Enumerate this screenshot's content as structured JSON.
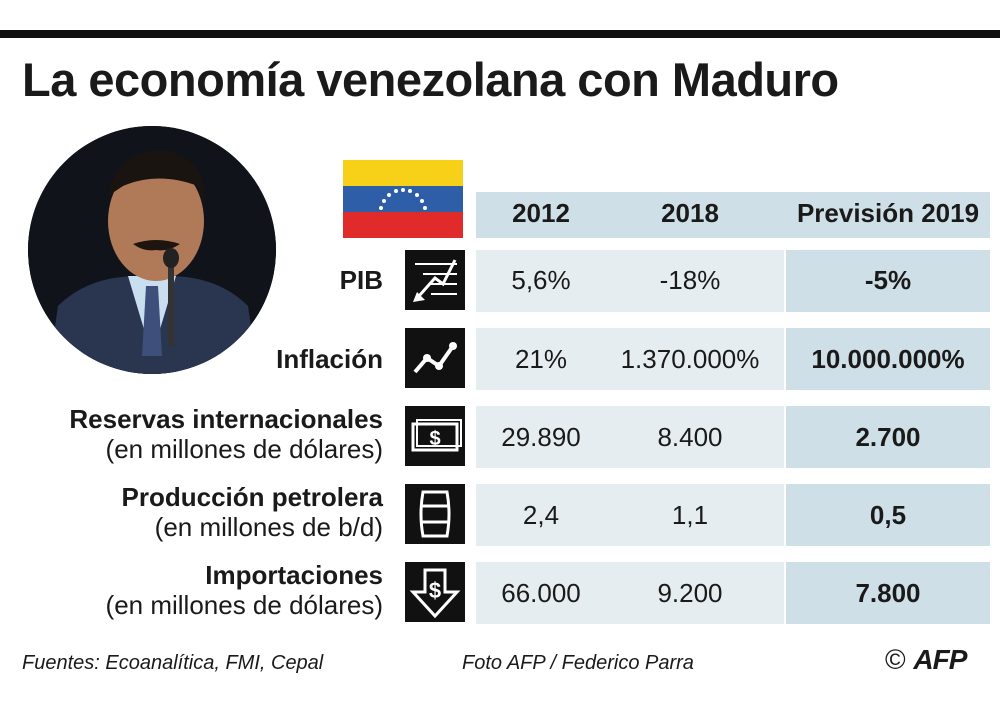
{
  "title": "La economía venezolana con Maduro",
  "chart_data": {
    "type": "table",
    "columns": [
      "2012",
      "2018",
      "Previsión 2019"
    ],
    "rows": [
      {
        "label": "PIB",
        "sublabel": "",
        "icon": "chart-down-icon",
        "values": [
          "5,6%",
          "-18%",
          "-5%"
        ]
      },
      {
        "label": "Inflación",
        "sublabel": "",
        "icon": "trend-line-icon",
        "values": [
          "21%",
          "1.370.000%",
          "10.000.000%"
        ]
      },
      {
        "label": "Reservas internacionales",
        "sublabel": "(en millones de dólares)",
        "icon": "banknote-icon",
        "values": [
          "29.890",
          "8.400",
          "2.700"
        ]
      },
      {
        "label": "Producción petrolera",
        "sublabel": "(en millones de b/d)",
        "icon": "oil-barrel-icon",
        "values": [
          "2,4",
          "1,1",
          "0,5"
        ]
      },
      {
        "label": "Importaciones",
        "sublabel": "(en millones de dólares)",
        "icon": "dollar-down-arrow-icon",
        "values": [
          "66.000",
          "9.200",
          "7.800"
        ]
      }
    ]
  },
  "footer": {
    "sources": "Fuentes: Ecoanalítica, FMI, Cepal",
    "photo_credit": "Foto AFP /  Federico Parra",
    "copyright": "©",
    "agency_logo": "AFP"
  },
  "colors": {
    "header_band": "#cfdfe8",
    "cell_band": "#e6edf1",
    "flag_yellow": "#f7d117",
    "flag_blue": "#2e5ea8",
    "flag_red": "#e12a2a"
  }
}
